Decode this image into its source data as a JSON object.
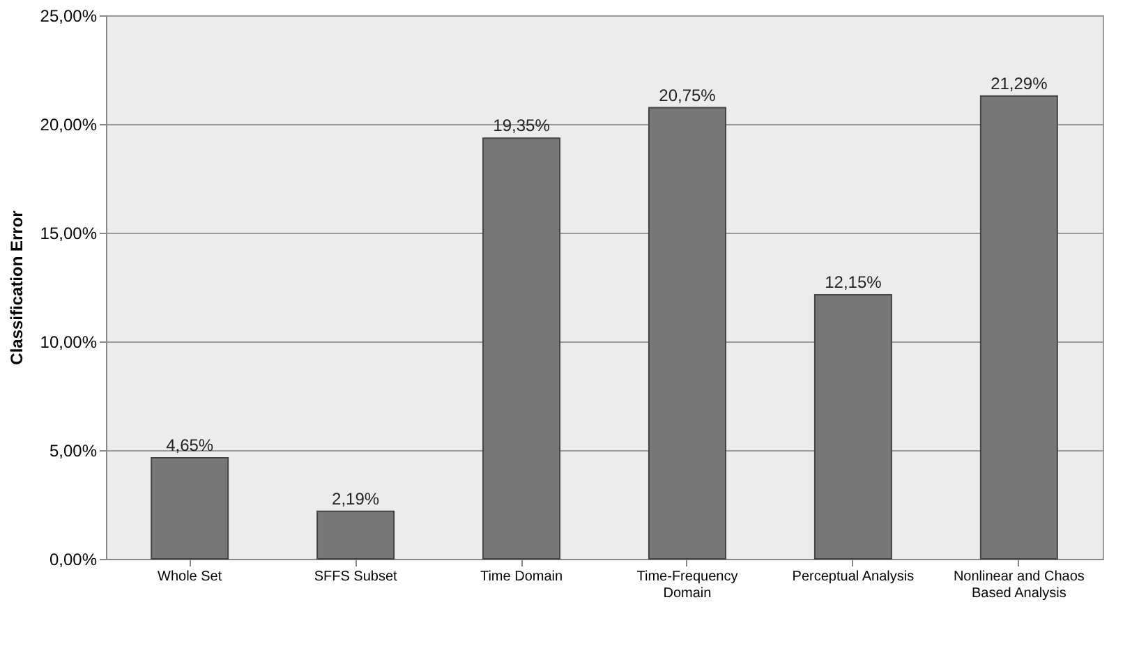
{
  "chart_data": {
    "type": "bar",
    "ylabel": "Classification Error",
    "categories": [
      "Whole Set",
      "SFFS Subset",
      "Time Domain",
      "Time-Frequency Domain",
      "Perceptual Analysis",
      "Nonlinear and Chaos Based Analysis"
    ],
    "values": [
      4.65,
      2.19,
      19.35,
      20.75,
      12.15,
      21.29
    ],
    "value_labels": [
      "4,65%",
      "2,19%",
      "19,35%",
      "20,75%",
      "12,15%",
      "21,29%"
    ],
    "color": "#787878",
    "ylim": [
      0,
      25
    ],
    "yticks": [
      {
        "value": 0,
        "label": "0,00%"
      },
      {
        "value": 5,
        "label": "5,00%"
      },
      {
        "value": 10,
        "label": "10,00%"
      },
      {
        "value": 15,
        "label": "15,00%"
      },
      {
        "value": 20,
        "label": "20,00%"
      },
      {
        "value": 25,
        "label": "25,00%"
      }
    ],
    "grid": "y"
  }
}
